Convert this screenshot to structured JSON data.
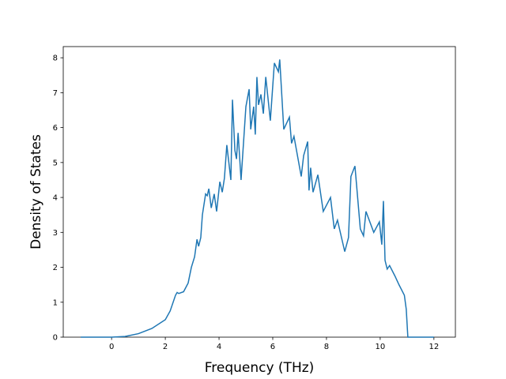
{
  "chart_data": {
    "type": "line",
    "xlabel": "Frequency (THz)",
    "ylabel": "Density of States",
    "series": [
      {
        "color": "#1f77b4",
        "x": [
          -1.15,
          -0.5,
          0,
          0.5,
          1.0,
          1.5,
          2.0,
          2.18,
          2.38,
          2.44,
          2.5,
          2.68,
          2.85,
          2.97,
          3.09,
          3.18,
          3.24,
          3.32,
          3.38,
          3.5,
          3.56,
          3.62,
          3.71,
          3.82,
          3.91,
          4.03,
          4.12,
          4.2,
          4.29,
          4.44,
          4.5,
          4.59,
          4.65,
          4.71,
          4.82,
          5.0,
          5.12,
          5.18,
          5.29,
          5.35,
          5.41,
          5.47,
          5.56,
          5.65,
          5.74,
          5.91,
          6.06,
          6.21,
          6.26,
          6.41,
          6.62,
          6.7,
          6.79,
          7.06,
          7.15,
          7.3,
          7.35,
          7.41,
          7.5,
          7.68,
          7.88,
          8.15,
          8.29,
          8.41,
          8.68,
          8.82,
          8.91,
          9.06,
          9.26,
          9.38,
          9.47,
          9.76,
          9.97,
          10.06,
          10.12,
          10.18,
          10.26,
          10.35,
          10.55,
          10.7,
          10.9,
          10.97,
          11.03,
          12.0
        ],
        "values": [
          0,
          0,
          0,
          0.02,
          0.1,
          0.25,
          0.5,
          0.75,
          1.2,
          1.28,
          1.25,
          1.3,
          1.55,
          2.0,
          2.3,
          2.8,
          2.6,
          2.85,
          3.5,
          4.1,
          4.05,
          4.25,
          3.7,
          4.1,
          3.6,
          4.45,
          4.15,
          4.55,
          5.5,
          4.5,
          6.8,
          5.35,
          5.1,
          5.85,
          4.5,
          6.6,
          7.1,
          5.95,
          6.6,
          5.8,
          7.45,
          6.65,
          6.95,
          6.4,
          7.45,
          6.2,
          7.85,
          7.6,
          7.95,
          5.95,
          6.3,
          5.55,
          5.75,
          4.6,
          5.2,
          5.6,
          4.2,
          4.85,
          4.15,
          4.65,
          3.6,
          4.0,
          3.1,
          3.35,
          2.45,
          2.85,
          4.6,
          4.9,
          3.1,
          2.9,
          3.6,
          3.0,
          3.3,
          2.65,
          3.9,
          2.2,
          1.95,
          2.05,
          1.75,
          1.5,
          1.2,
          0.8,
          0,
          0
        ]
      }
    ],
    "xlim": [
      -1.8,
      12.8
    ],
    "ylim": [
      0,
      8.32
    ],
    "xticks": [
      0,
      2,
      4,
      6,
      8,
      10,
      12
    ],
    "yticks": [
      0,
      1,
      2,
      3,
      4,
      5,
      6,
      7,
      8
    ]
  }
}
